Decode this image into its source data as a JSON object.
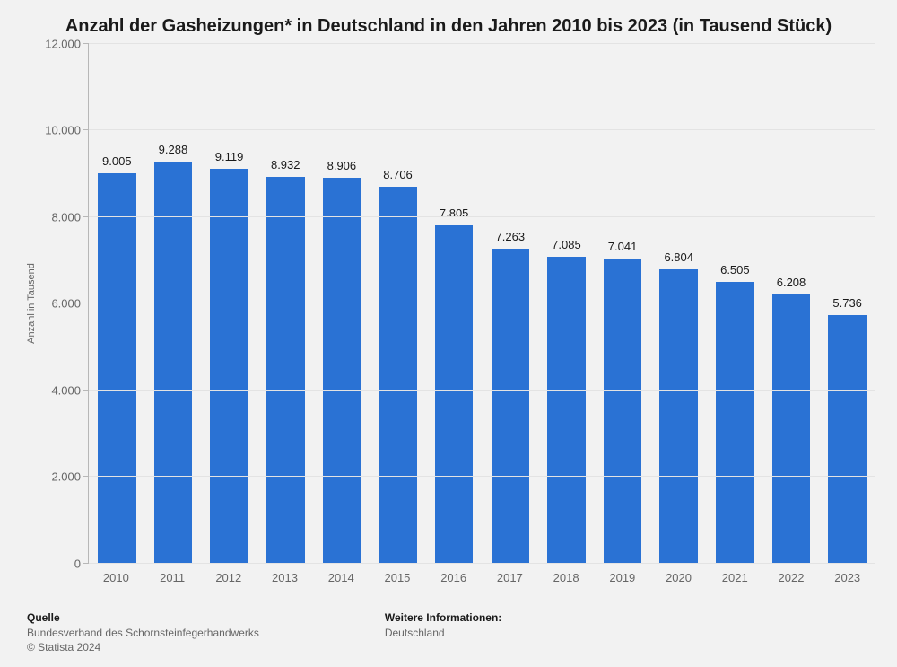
{
  "chart": {
    "type": "bar",
    "title": "Anzahl der Gasheizungen* in Deutschland in den Jahren 2010 bis 2023 (in Tausend Stück)",
    "title_fontsize": 20,
    "y_axis_label": "Anzahl in Tausend",
    "y_axis_label_fontsize": 11,
    "categories": [
      "2010",
      "2011",
      "2012",
      "2013",
      "2014",
      "2015",
      "2016",
      "2017",
      "2018",
      "2019",
      "2020",
      "2021",
      "2022",
      "2023"
    ],
    "values": [
      9005,
      9288,
      9119,
      8932,
      8906,
      8706,
      7805,
      7263,
      7085,
      7041,
      6804,
      6505,
      6208,
      5736
    ],
    "value_labels": [
      "9.005",
      "9.288",
      "9.119",
      "8.932",
      "8.906",
      "8.706",
      "7.805",
      "7.263",
      "7.085",
      "7.041",
      "6.804",
      "6.505",
      "6.208",
      "5.736"
    ],
    "ylim": [
      0,
      12000
    ],
    "yticks": [
      0,
      2000,
      4000,
      6000,
      8000,
      10000,
      12000
    ],
    "ytick_labels": [
      "0",
      "2.000",
      "4.000",
      "6.000",
      "8.000",
      "10.000",
      "12.000"
    ],
    "bar_color": "#2a72d4",
    "bar_width_pct": 68,
    "background_color": "#f2f2f2",
    "grid_color": "#e3e3e3",
    "axis_color": "#b7b7b7",
    "tick_label_color": "#666666",
    "tick_label_fontsize": 13,
    "value_label_fontsize": 13,
    "value_label_color": "#1a1a1a"
  },
  "footer": {
    "source_heading": "Quelle",
    "source_line1": "Bundesverband des Schornsteinfegerhandwerks",
    "source_line2": "© Statista 2024",
    "info_heading": "Weitere Informationen:",
    "info_line1": "Deutschland",
    "footer_fontsize": 12
  }
}
